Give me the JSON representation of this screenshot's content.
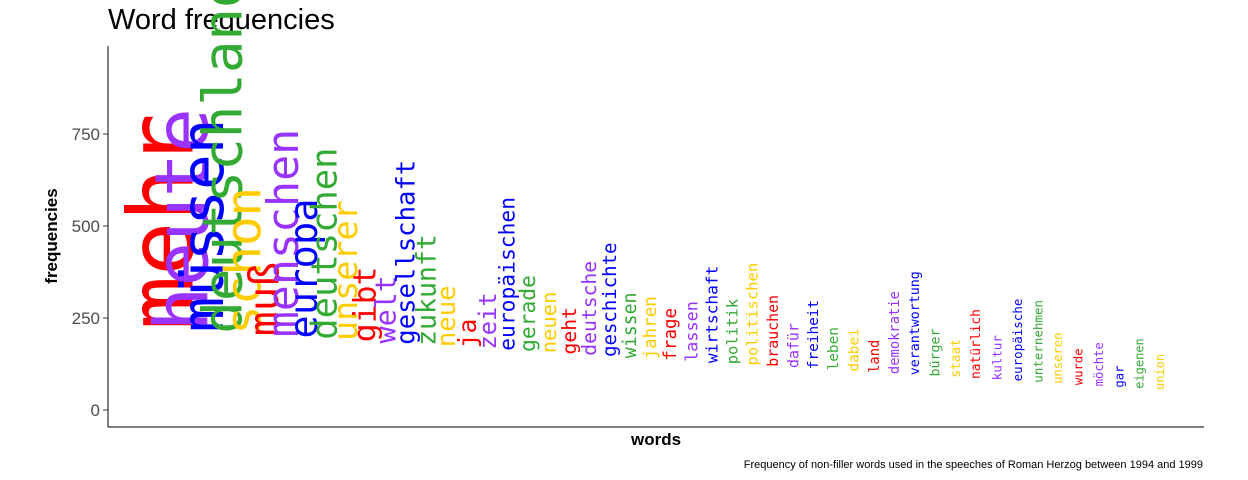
{
  "chart_data": {
    "type": "bar",
    "title": "Word frequencies",
    "xlabel": "words",
    "ylabel": "frequencies",
    "caption": "Frequency of non-filler words used in the speeches of Roman Herzog between 1994 and 1999",
    "ylim": [
      0,
      980
    ],
    "yticks": [
      0,
      250,
      500,
      750
    ],
    "grid": false,
    "legend": "none",
    "colors": [
      "#ff0000",
      "#9933ff",
      "#0000ff",
      "#33aa33",
      "#ffcc00"
    ],
    "words": [
      {
        "word": "mehr",
        "value": 900
      },
      {
        "word": "heute",
        "value": 790
      },
      {
        "word": "müssen",
        "value": 680
      },
      {
        "word": "deutschland",
        "value": 640
      },
      {
        "word": "schon",
        "value": 600
      },
      {
        "word": "muß",
        "value": 530
      },
      {
        "word": "menschen",
        "value": 550
      },
      {
        "word": "europa",
        "value": 510
      },
      {
        "word": "deutschen",
        "value": 480
      },
      {
        "word": "unserer",
        "value": 460
      },
      {
        "word": "gibt",
        "value": 440
      },
      {
        "word": "welt",
        "value": 410
      },
      {
        "word": "gesellschaft",
        "value": 380
      },
      {
        "word": "zukunft",
        "value": 390
      },
      {
        "word": "neue",
        "value": 380
      },
      {
        "word": "ja",
        "value": 370
      },
      {
        "word": "zeit",
        "value": 360
      },
      {
        "word": "europäischen",
        "value": 330
      },
      {
        "word": "gerade",
        "value": 330
      },
      {
        "word": "neuen",
        "value": 320
      },
      {
        "word": "geht",
        "value": 310
      },
      {
        "word": "deutsche",
        "value": 310
      },
      {
        "word": "geschichte",
        "value": 300
      },
      {
        "word": "wissen",
        "value": 290
      },
      {
        "word": "jahren",
        "value": 280
      },
      {
        "word": "frage",
        "value": 280
      },
      {
        "word": "lassen",
        "value": 270
      },
      {
        "word": "wirtschaft",
        "value": 260
      },
      {
        "word": "politik",
        "value": 250
      },
      {
        "word": "politischen",
        "value": 250
      },
      {
        "word": "brauchen",
        "value": 240
      },
      {
        "word": "dafür",
        "value": 240
      },
      {
        "word": "freiheit",
        "value": 230
      },
      {
        "word": "leben",
        "value": 230
      },
      {
        "word": "dabei",
        "value": 230
      },
      {
        "word": "land",
        "value": 220
      },
      {
        "word": "demokratie",
        "value": 220
      },
      {
        "word": "verantwortung",
        "value": 210
      },
      {
        "word": "bürger",
        "value": 210
      },
      {
        "word": "staat",
        "value": 200
      },
      {
        "word": "natürlich",
        "value": 200
      },
      {
        "word": "kultur",
        "value": 190
      },
      {
        "word": "europäische",
        "value": 190
      },
      {
        "word": "unternehmen",
        "value": 190
      },
      {
        "word": "unseren",
        "value": 180
      },
      {
        "word": "wurde",
        "value": 180
      },
      {
        "word": "möchte",
        "value": 180
      },
      {
        "word": "gar",
        "value": 180
      },
      {
        "word": "eigenen",
        "value": 170
      },
      {
        "word": "union",
        "value": 170
      }
    ]
  }
}
